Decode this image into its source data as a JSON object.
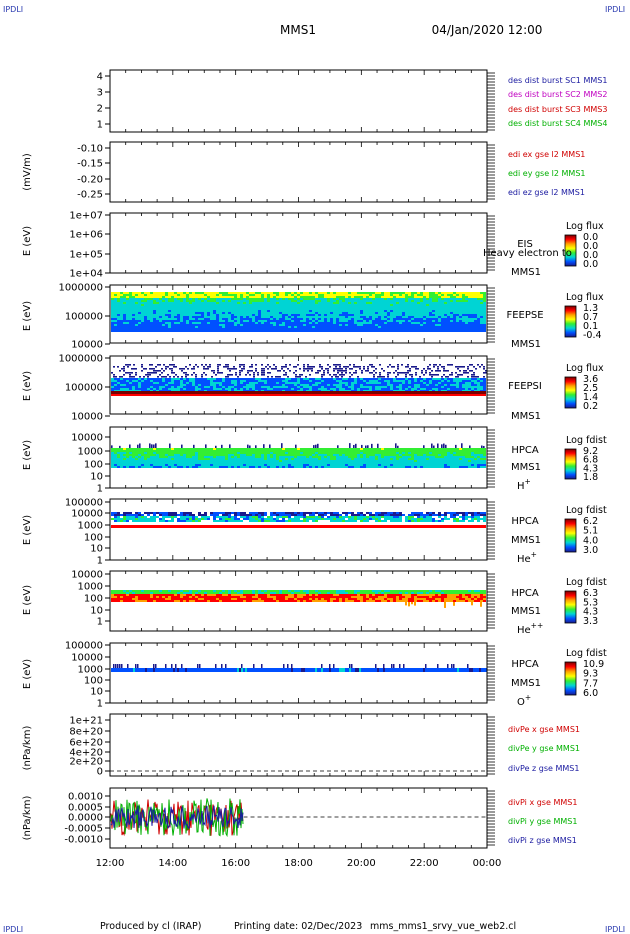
{
  "corner_label": "IPDLI",
  "header": {
    "spacecraft": "MMS1",
    "datetime": "04/Jan/2020 12:00"
  },
  "footer": {
    "produced_by": "Produced by cl (IRAP)",
    "printing_date": "Printing date: 02/Dec/2023",
    "filename": "mms_mms1_srvy_vue_web2.cl"
  },
  "chart_data": [
    {
      "id": "des-dist",
      "type": "line",
      "yticks": [
        "4",
        "3",
        "2",
        "1"
      ],
      "ylim": [
        0.7,
        4.3
      ],
      "legend": [
        {
          "text": "des dist burst SC1 MMS1",
          "color": "#1a1aa0"
        },
        {
          "text": "des dist burst SC2 MMS2",
          "color": "#c000c0"
        },
        {
          "text": "des dist burst SC3 MMS3",
          "color": "#d00000"
        },
        {
          "text": "des dist burst SC4 MMS4",
          "color": "#00b000"
        }
      ]
    },
    {
      "id": "edi-e",
      "type": "line",
      "ylabel": "(mV/m)",
      "yticks": [
        "-0.10",
        "-0.15",
        "-0.20",
        "-0.25"
      ],
      "ylim": [
        -0.27,
        -0.08
      ],
      "legend": [
        {
          "text": "edi ex gse l2 MMS1",
          "color": "#d00000"
        },
        {
          "text": "edi ey gse l2 MMS1",
          "color": "#00b000"
        },
        {
          "text": "edi ez gse l2 MMS1",
          "color": "#1a1aa0"
        }
      ]
    },
    {
      "id": "eis",
      "type": "heatmap",
      "ylabel": "E (eV)",
      "yticks": [
        "1e+07",
        "1e+06",
        "1e+05",
        "1e+04"
      ],
      "instrument": "EIS",
      "overlay_text": "Heavy electron to",
      "spacecraft": "MMS1",
      "colorbar": {
        "title": "Log flux",
        "ticks": [
          "0.0",
          "0.0",
          "0.0",
          "0.0"
        ],
        "stops": [
          "#7a0000",
          "#ff0000",
          "#ffa000",
          "#ffff00",
          "#33ee33",
          "#00d4d4",
          "#0050ff",
          "#1a1a8c"
        ]
      }
    },
    {
      "id": "feeps-e",
      "type": "heatmap",
      "ylabel": "E (eV)",
      "yticks": [
        "1000000",
        "100000",
        "10000"
      ],
      "instrument": "FEEPSE",
      "spacecraft": "MMS1",
      "colorbar": {
        "title": "Log flux",
        "ticks": [
          "1.3",
          "0.7",
          "0.1",
          "-0.4"
        ],
        "stops": [
          "#7a0000",
          "#ff0000",
          "#ffa000",
          "#ffff00",
          "#33ee33",
          "#00d4d4",
          "#0050ff",
          "#1a1a8c"
        ]
      }
    },
    {
      "id": "feeps-i",
      "type": "heatmap",
      "ylabel": "E (eV)",
      "yticks": [
        "1000000",
        "100000",
        "10000"
      ],
      "instrument": "FEEPSI",
      "spacecraft": "MMS1",
      "colorbar": {
        "title": "Log flux",
        "ticks": [
          "3.6",
          "2.5",
          "1.4",
          "0.2"
        ],
        "stops": [
          "#7a0000",
          "#ff0000",
          "#ffa000",
          "#ffff00",
          "#33ee33",
          "#00d4d4",
          "#0050ff",
          "#1a1a8c"
        ]
      }
    },
    {
      "id": "hpca-h",
      "type": "heatmap",
      "ylabel": "E (eV)",
      "yticks": [
        "10000",
        "1000",
        "100",
        "10",
        "1"
      ],
      "instrument": "HPCA",
      "spacecraft": "MMS1",
      "species": "H",
      "charge": "+",
      "colorbar": {
        "title": "Log fdist",
        "ticks": [
          "9.2",
          "6.8",
          "4.3",
          "1.8"
        ],
        "stops": [
          "#7a0000",
          "#ff0000",
          "#ffa000",
          "#ffff00",
          "#33ee33",
          "#00d4d4",
          "#0050ff",
          "#1a1a8c"
        ]
      }
    },
    {
      "id": "hpca-he",
      "type": "heatmap",
      "ylabel": "E (eV)",
      "yticks": [
        "100000",
        "10000",
        "1000",
        "100",
        "10",
        "1"
      ],
      "instrument": "HPCA",
      "spacecraft": "MMS1",
      "species": "He",
      "charge": "+",
      "colorbar": {
        "title": "Log fdist",
        "ticks": [
          "6.2",
          "5.1",
          "4.0",
          "3.0"
        ],
        "stops": [
          "#7a0000",
          "#ff0000",
          "#ffa000",
          "#ffff00",
          "#33ee33",
          "#00d4d4",
          "#0050ff",
          "#1a1a8c"
        ]
      }
    },
    {
      "id": "hpca-he2",
      "type": "heatmap",
      "ylabel": "E (eV)",
      "yticks": [
        "10000",
        "1000",
        "100",
        "10",
        "1"
      ],
      "instrument": "HPCA",
      "spacecraft": "MMS1",
      "species": "He",
      "charge": "++",
      "colorbar": {
        "title": "Log fdist",
        "ticks": [
          "6.3",
          "5.3",
          "4.3",
          "3.3"
        ],
        "stops": [
          "#7a0000",
          "#ff0000",
          "#ffa000",
          "#ffff00",
          "#33ee33",
          "#00d4d4",
          "#0050ff",
          "#1a1a8c"
        ]
      }
    },
    {
      "id": "hpca-o",
      "type": "heatmap",
      "ylabel": "E (eV)",
      "yticks": [
        "100000",
        "10000",
        "1000",
        "100",
        "10",
        "1"
      ],
      "instrument": "HPCA",
      "spacecraft": "MMS1",
      "species": "O",
      "charge": "+",
      "colorbar": {
        "title": "Log fdist",
        "ticks": [
          "10.9",
          "9.3",
          "7.7",
          "6.0"
        ],
        "stops": [
          "#7a0000",
          "#ff0000",
          "#ffa000",
          "#ffff00",
          "#33ee33",
          "#00d4d4",
          "#0050ff",
          "#1a1a8c"
        ]
      }
    },
    {
      "id": "divpe",
      "type": "line",
      "ylabel": "(nPa/km)",
      "yticks": [
        "1e+21",
        "8e+20",
        "6e+20",
        "4e+20",
        "2e+20",
        "0"
      ],
      "ylim": [
        -1e+20,
        1.05e+21
      ],
      "zero_line": 0,
      "legend": [
        {
          "text": "divPe x gse MMS1",
          "color": "#d00000"
        },
        {
          "text": "divPe y gse MMS1",
          "color": "#00b000"
        },
        {
          "text": "divPe z gse MMS1",
          "color": "#1a1aa0"
        }
      ]
    },
    {
      "id": "divpi",
      "type": "line",
      "ylabel": "(nPa/km)",
      "yticks": [
        "0.0010",
        "0.0005",
        "0.0000",
        "-0.0005",
        "-0.0010"
      ],
      "ylim": [
        -0.00135,
        0.00135
      ],
      "data_end_hours": 4.25,
      "noise_amplitude": 0.0009,
      "zero_line": 0,
      "legend": [
        {
          "text": "divPi x gse MMS1",
          "color": "#d00000"
        },
        {
          "text": "divPi y gse MMS1",
          "color": "#00b000"
        },
        {
          "text": "divPi z gse MMS1",
          "color": "#1a1aa0"
        }
      ]
    }
  ],
  "time_axis": {
    "span_hours": 12,
    "labels": [
      "12:00",
      "14:00",
      "16:00",
      "18:00",
      "20:00",
      "22:00",
      "00:00"
    ]
  }
}
